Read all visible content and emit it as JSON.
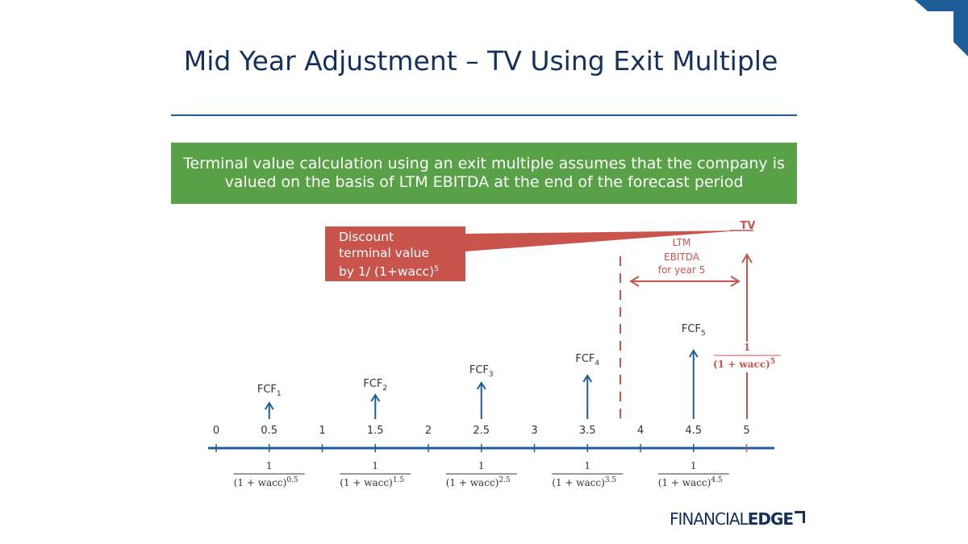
{
  "title": "Mid Year Adjustment – TV Using Exit Multiple",
  "banner": {
    "line1": "Terminal value calculation using an exit multiple assumes that the company is",
    "line2": "valued on the basis of LTM EBITDA at the end of the forecast period"
  },
  "callout": {
    "line1": "Discount",
    "line2": "terminal value",
    "line3_prefix": "by  1/ (1+wacc)",
    "line3_sup": "5"
  },
  "ltm_label": {
    "line1": "LTM",
    "line2": "EBITDA",
    "line3": "for year 5"
  },
  "tv_label": "TV",
  "ticks": [
    "0",
    "0.5",
    "1",
    "1.5",
    "2",
    "2.5",
    "3",
    "3.5",
    "4",
    "4.5",
    "5"
  ],
  "cash_flows": [
    {
      "label": "FCF",
      "sub": "1",
      "discount_num": "1",
      "discount_den": "(1 + wacc)",
      "discount_exp": "0.5"
    },
    {
      "label": "FCF",
      "sub": "2",
      "discount_num": "1",
      "discount_den": "(1 + wacc)",
      "discount_exp": "1.5"
    },
    {
      "label": "FCF",
      "sub": "3",
      "discount_num": "1",
      "discount_den": "(1 + wacc)",
      "discount_exp": "2.5"
    },
    {
      "label": "FCF",
      "sub": "4",
      "discount_num": "1",
      "discount_den": "(1 + wacc)",
      "discount_exp": "3.5"
    },
    {
      "label": "FCF",
      "sub": "5",
      "discount_num": "1",
      "discount_den": "(1 + wacc)",
      "discount_exp": "4.5"
    }
  ],
  "tv_discount": {
    "num": "1",
    "den": "(1 + wacc)",
    "exp": "5"
  },
  "logo": {
    "thin": "FINANCIAL",
    "bold": "EDGE"
  },
  "colors": {
    "navy": "#14305c",
    "blue": "#1f5d99",
    "green": "#58a146",
    "red": "#c9544c"
  }
}
